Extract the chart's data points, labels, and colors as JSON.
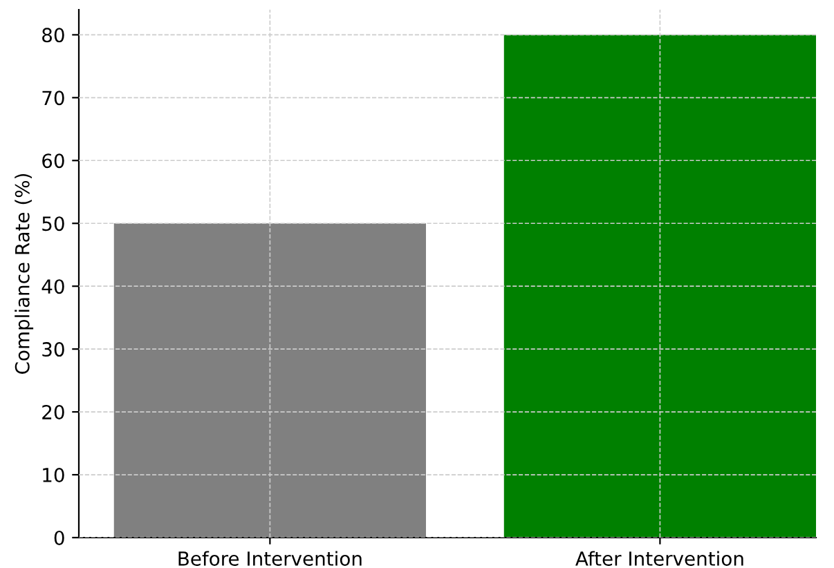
{
  "chart_data": {
    "type": "bar",
    "ylabel": "Compliance Rate (%)",
    "categories": [
      "Before Intervention",
      "After Intervention"
    ],
    "values": [
      50,
      80
    ],
    "colors": [
      "#808080",
      "#008000"
    ],
    "ylim": [
      0,
      84
    ],
    "yticks": [
      0,
      10,
      20,
      30,
      40,
      50,
      60,
      70,
      80
    ],
    "grid": true
  }
}
